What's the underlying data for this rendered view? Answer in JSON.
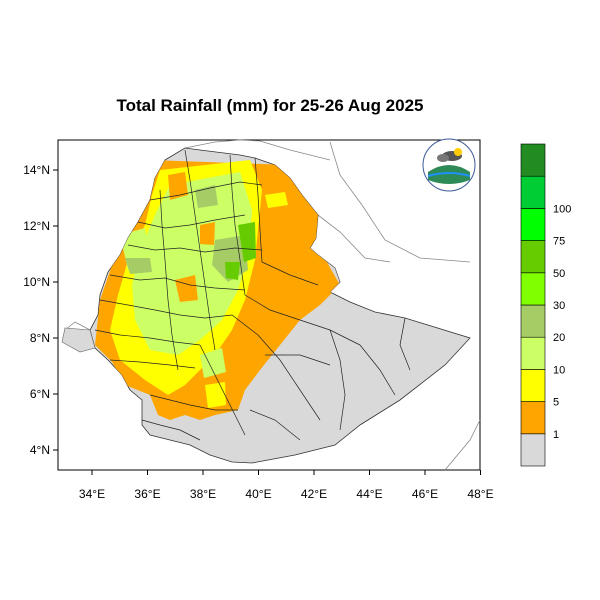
{
  "title": "Total Rainfall (mm) for 25-26 Aug 2025",
  "lon_ticks": [
    "34°E",
    "36°E",
    "38°E",
    "40°E",
    "42°E",
    "44°E",
    "46°E",
    "48°E"
  ],
  "lat_ticks": [
    "4°N",
    "6°N",
    "8°N",
    "10°N",
    "12°N",
    "14°N"
  ],
  "colorbar": {
    "colors": [
      "#d9d9d9",
      "#ffa500",
      "#ffff00",
      "#ccff66",
      "#a6cc66",
      "#80ff00",
      "#66cc00",
      "#00ff00",
      "#00cc33",
      "#228b22"
    ],
    "labels": [
      "1",
      "5",
      "10",
      "20",
      "30",
      "50",
      "75",
      "100"
    ]
  },
  "map_colors": {
    "land": "#d9d9d9",
    "orange": "#ffa500",
    "yellow": "#ffff00",
    "light_green": "#ccff66",
    "olive": "#a6cc66",
    "green": "#66cc00"
  }
}
